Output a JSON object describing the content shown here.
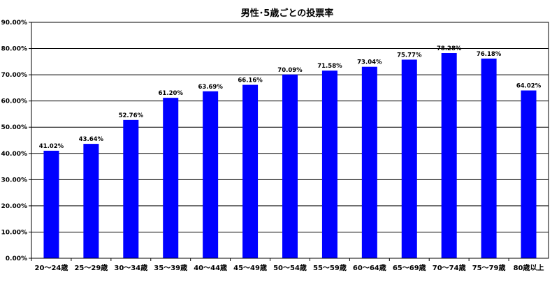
{
  "chart_data": {
    "type": "bar",
    "title": "男性･5歳ごとの投票率",
    "xlabel": "",
    "ylabel": "",
    "ylim": [
      0,
      90
    ],
    "y_ticks": [
      "0.00%",
      "10.00%",
      "20.00%",
      "30.00%",
      "40.00%",
      "50.00%",
      "60.00%",
      "70.00%",
      "80.00%",
      "90.00%"
    ],
    "grid": true,
    "legend": "none",
    "bar_color": "#0000ff",
    "categories": [
      "20～24歳",
      "25～29歳",
      "30～34歳",
      "35～39歳",
      "40～44歳",
      "45～49歳",
      "50～54歳",
      "55～59歳",
      "60～64歳",
      "65～69歳",
      "70～74歳",
      "75～79歳",
      "80歳以上"
    ],
    "values": [
      41.02,
      43.64,
      52.76,
      61.2,
      63.69,
      66.16,
      70.09,
      71.58,
      73.04,
      75.77,
      78.28,
      76.18,
      64.02
    ],
    "data_labels": [
      "41.02%",
      "43.64%",
      "52.76%",
      "61.20%",
      "63.69%",
      "66.16%",
      "70.09%",
      "71.58%",
      "73.04%",
      "75.77%",
      "78.28%",
      "76.18%",
      "64.02%"
    ]
  }
}
